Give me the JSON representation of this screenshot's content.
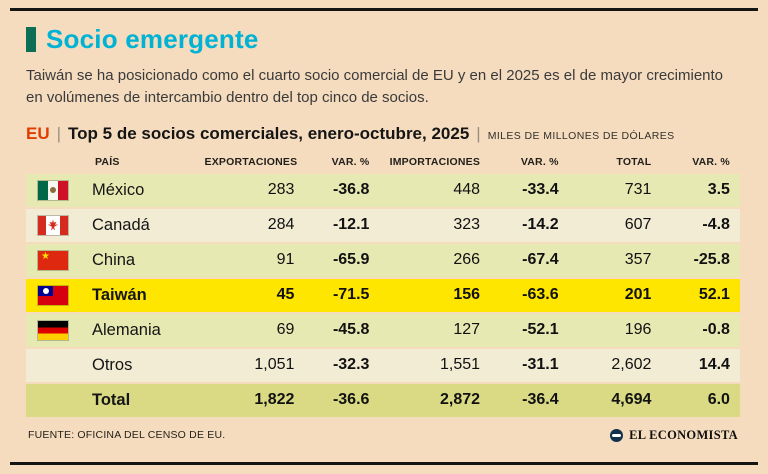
{
  "title": "Socio emergente",
  "intro": "Taiwán se ha posicionado como el cuarto socio comercial de EU y en el 2025 es el de mayor crecimiento en volúmenes de intercambio dentro del top cinco de socios.",
  "header": {
    "prefix": "EU",
    "separator": "|",
    "title": "Top 5 de socios comerciales, enero-octubre, 2025",
    "units": "MILES DE MILLONES DE DÓLARES"
  },
  "colors": {
    "background": "#f5dcbf",
    "title": "#00b2d4",
    "accent_bar": "#0c6e55",
    "eu_red": "#e03c00",
    "row_green": "#e7e9b3",
    "row_cream": "#f2ecd4",
    "row_yellow": "#ffe600",
    "row_olive": "#d9da83"
  },
  "chart_data": {
    "type": "table",
    "title": "EU | Top 5 de socios comerciales, enero-octubre, 2025",
    "units": "MILES DE MILLONES DE DÓLARES",
    "columns": [
      "PAÍS",
      "EXPORTACIONES",
      "VAR. %",
      "IMPORTACIONES",
      "VAR. %",
      "TOTAL",
      "VAR. %"
    ],
    "rows": [
      {
        "pais": "México",
        "flag": "mexico",
        "values": [
          "283",
          "-36.8",
          "448",
          "-33.4",
          "731",
          "3.5"
        ],
        "tone": "green",
        "bold": false
      },
      {
        "pais": "Canadá",
        "flag": "canada",
        "values": [
          "284",
          "-12.1",
          "323",
          "-14.2",
          "607",
          "-4.8"
        ],
        "tone": "cream",
        "bold": false
      },
      {
        "pais": "China",
        "flag": "china",
        "values": [
          "91",
          "-65.9",
          "266",
          "-67.4",
          "357",
          "-25.8"
        ],
        "tone": "green",
        "bold": false
      },
      {
        "pais": "Taiwán",
        "flag": "taiwan",
        "values": [
          "45",
          "-71.5",
          "156",
          "-63.6",
          "201",
          "52.1"
        ],
        "tone": "yellow",
        "bold": true
      },
      {
        "pais": "Alemania",
        "flag": "germany",
        "values": [
          "69",
          "-45.8",
          "127",
          "-52.1",
          "196",
          "-0.8"
        ],
        "tone": "green",
        "bold": false
      },
      {
        "pais": "Otros",
        "flag": null,
        "values": [
          "1,051",
          "-32.3",
          "1,551",
          "-31.1",
          "2,602",
          "14.4"
        ],
        "tone": "cream",
        "bold": false
      },
      {
        "pais": "Total",
        "flag": null,
        "values": [
          "1,822",
          "-36.6",
          "2,872",
          "-36.4",
          "4,694",
          "6.0"
        ],
        "tone": "olive",
        "bold": true
      }
    ]
  },
  "footer": {
    "source": "FUENTE: OFICINA DEL CENSO DE EU.",
    "brand": "EL ECONOMISTA"
  }
}
